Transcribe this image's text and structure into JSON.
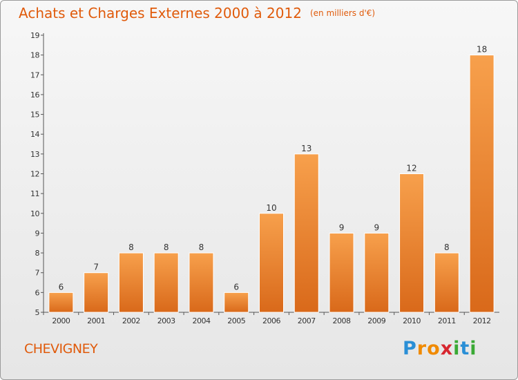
{
  "header": {
    "title": "Achats et Charges Externes 2000 à 2012",
    "unit": "(en milliers d'€)"
  },
  "commune": "CHEVIGNEY",
  "logo": {
    "letters": [
      "P",
      "r",
      "o",
      "x",
      "i",
      "t",
      "i"
    ],
    "colors": [
      "#2a8fd6",
      "#f08a00",
      "#f08a00",
      "#d7262f",
      "#3aa935",
      "#2a8fd6",
      "#3aa935"
    ]
  },
  "chart_data": {
    "type": "bar",
    "categories": [
      "2000",
      "2001",
      "2002",
      "2003",
      "2004",
      "2005",
      "2006",
      "2007",
      "2008",
      "2009",
      "2010",
      "2011",
      "2012"
    ],
    "values": [
      6,
      7,
      8,
      8,
      8,
      6,
      10,
      13,
      9,
      9,
      12,
      8,
      18
    ],
    "title": "Achats et Charges Externes 2000 à 2012",
    "subtitle": "(en milliers d'€)",
    "ylim": [
      5,
      19
    ],
    "yticks": [
      5,
      6,
      7,
      8,
      9,
      10,
      11,
      12,
      13,
      14,
      15,
      16,
      17,
      18,
      19
    ],
    "grid": false,
    "bar_color": "#f0892e",
    "data_labels": true
  }
}
